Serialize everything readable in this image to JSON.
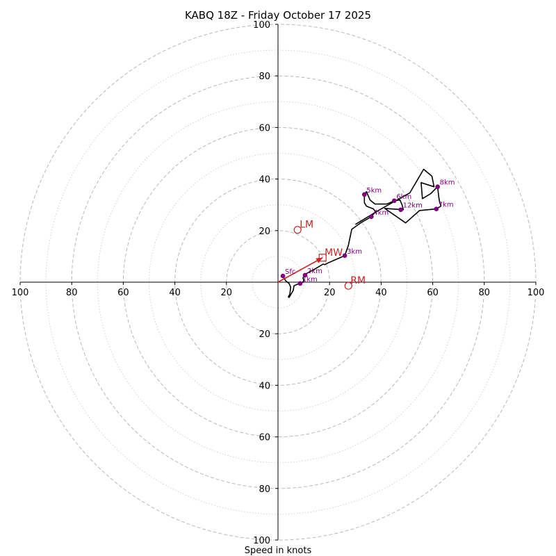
{
  "chart_data": {
    "type": "scatter",
    "subtype": "hodograph",
    "title": "KABQ 18Z - Friday October 17 2025",
    "xlabel": "Speed in knots",
    "ylabel": "",
    "xlim": [
      -100,
      100
    ],
    "ylim": [
      -100,
      100
    ],
    "grid": true,
    "ring_major": [
      20,
      40,
      60,
      80,
      100
    ],
    "ring_minor": [
      10,
      30,
      50,
      70,
      90
    ],
    "x_ticks": [
      {
        "v": -100,
        "label": "100"
      },
      {
        "v": -80,
        "label": "80"
      },
      {
        "v": -60,
        "label": "60"
      },
      {
        "v": -40,
        "label": "40"
      },
      {
        "v": -20,
        "label": "20"
      },
      {
        "v": 20,
        "label": "20"
      },
      {
        "v": 40,
        "label": "40"
      },
      {
        "v": 60,
        "label": "60"
      },
      {
        "v": 80,
        "label": "80"
      },
      {
        "v": 100,
        "label": "100"
      }
    ],
    "y_ticks": [
      {
        "v": 100,
        "label": "100"
      },
      {
        "v": 80,
        "label": "80"
      },
      {
        "v": 60,
        "label": "60"
      },
      {
        "v": 40,
        "label": "40"
      },
      {
        "v": 20,
        "label": "20"
      },
      {
        "v": -20,
        "label": "20"
      },
      {
        "v": -40,
        "label": "40"
      },
      {
        "v": -60,
        "label": "60"
      },
      {
        "v": -80,
        "label": "80"
      },
      {
        "v": -100,
        "label": "100"
      }
    ],
    "trace_color": "#000000",
    "point_color": "#800080",
    "motion_color": "#cc2222",
    "trace": [
      [
        1.9,
        2.4
      ],
      [
        3.0,
        0.5
      ],
      [
        4.3,
        -0.5
      ],
      [
        4.9,
        -1.9
      ],
      [
        4.6,
        -4.6
      ],
      [
        4.0,
        -5.7
      ],
      [
        4.3,
        -5.9
      ],
      [
        5.1,
        -4.6
      ],
      [
        5.9,
        -3.2
      ],
      [
        6.2,
        -1.4
      ],
      [
        7.5,
        -0.8
      ],
      [
        8.6,
        -0.5
      ],
      [
        9.7,
        0.0
      ],
      [
        10.0,
        0.8
      ],
      [
        9.7,
        1.6
      ],
      [
        10.0,
        2.4
      ],
      [
        10.8,
        3.2
      ],
      [
        14.3,
        5.1
      ],
      [
        17.5,
        7.0
      ],
      [
        18.1,
        6.8
      ],
      [
        19.5,
        7.5
      ],
      [
        22.7,
        8.9
      ],
      [
        25.9,
        10.3
      ],
      [
        27.3,
        14.3
      ],
      [
        28.6,
        20.5
      ],
      [
        32.4,
        23.2
      ],
      [
        36.2,
        25.4
      ],
      [
        37.8,
        27.3
      ],
      [
        37.0,
        28.4
      ],
      [
        34.3,
        29.5
      ],
      [
        33.5,
        30.8
      ],
      [
        33.5,
        32.7
      ],
      [
        33.5,
        34.0
      ],
      [
        34.3,
        35.1
      ],
      [
        35.7,
        31.9
      ],
      [
        37.6,
        30.3
      ],
      [
        42.2,
        30.3
      ],
      [
        45.1,
        31.6
      ],
      [
        47.3,
        31.9
      ],
      [
        48.1,
        30.0
      ],
      [
        48.6,
        28.1
      ],
      [
        41.4,
        28.6
      ],
      [
        49.5,
        23.0
      ],
      [
        54.9,
        27.8
      ],
      [
        61.4,
        28.4
      ],
      [
        63.2,
        29.5
      ],
      [
        62.7,
        31.1
      ],
      [
        62.4,
        32.7
      ],
      [
        61.9,
        37.0
      ],
      [
        59.2,
        34.3
      ],
      [
        56.0,
        32.4
      ],
      [
        55.5,
        38.6
      ],
      [
        60.5,
        37.0
      ],
      [
        59.7,
        41.1
      ],
      [
        57.8,
        42.7
      ],
      [
        56.5,
        43.8
      ],
      [
        51.1,
        34.6
      ],
      [
        46.2,
        31.9
      ],
      [
        39.5,
        28.1
      ],
      [
        30.0,
        22.4
      ]
    ],
    "height_points": [
      {
        "label": "Sfc",
        "x": 1.9,
        "y": 2.4
      },
      {
        "label": "1km",
        "x": 8.6,
        "y": -0.5
      },
      {
        "label": "2km",
        "x": 10.5,
        "y": 2.7
      },
      {
        "label": "3km",
        "x": 25.9,
        "y": 10.3
      },
      {
        "label": "4km",
        "x": 36.2,
        "y": 25.4
      },
      {
        "label": "5km",
        "x": 33.5,
        "y": 34.0
      },
      {
        "label": "6km",
        "x": 45.1,
        "y": 31.6
      },
      {
        "label": "7km",
        "x": 61.4,
        "y": 28.4
      },
      {
        "label": "8km",
        "x": 61.9,
        "y": 37.0
      },
      {
        "label": "12km",
        "x": 47.6,
        "y": 28.1
      }
    ],
    "storm_motion": [
      {
        "label": "LM",
        "x": 7.6,
        "y": 20.3
      },
      {
        "label": "RM",
        "x": 27.3,
        "y": -1.4
      },
      {
        "label": "MW",
        "x": 17.3,
        "y": 9.5
      }
    ],
    "mean_wind_vector": {
      "from": [
        0,
        0
      ],
      "to": [
        17.3,
        9.5
      ]
    }
  }
}
